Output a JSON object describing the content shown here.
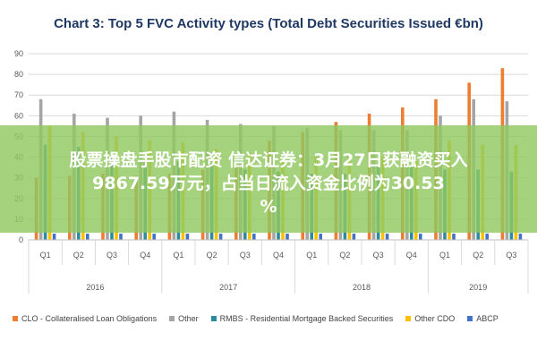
{
  "chart_data": {
    "type": "bar",
    "title": "Chart 3: Top 5 FVC Activity types (Total Debt Securities Issued €bn)",
    "xlabel": "",
    "ylabel": "",
    "ylim": [
      0,
      90
    ],
    "yticks": [
      "0",
      "10",
      "20",
      "30",
      "40",
      "50",
      "60",
      "70",
      "80",
      "90"
    ],
    "grid": true,
    "legend_position": "bottom",
    "categories": [
      "Q1",
      "Q2",
      "Q3",
      "Q4",
      "Q1",
      "Q2",
      "Q3",
      "Q4",
      "Q1",
      "Q2",
      "Q3",
      "Q4",
      "Q1",
      "Q2",
      "Q3"
    ],
    "year_groups": [
      {
        "label": "2016",
        "count": 4
      },
      {
        "label": "2017",
        "count": 4
      },
      {
        "label": "2018",
        "count": 4
      },
      {
        "label": "2019",
        "count": 3
      }
    ],
    "series": [
      {
        "name": "CLO - Collateralised Loan Obligations",
        "color": "#ed7d31",
        "values": [
          30,
          31,
          32,
          31,
          32,
          34,
          36,
          48,
          52,
          57,
          61,
          64,
          68,
          76,
          83
        ]
      },
      {
        "name": "Other",
        "color": "#a5a5a5",
        "values": [
          68,
          61,
          59,
          60,
          62,
          58,
          56,
          55,
          54,
          53,
          53,
          53,
          60,
          68,
          67
        ]
      },
      {
        "name": "RMBS - Residential Mortgage Backed Securities",
        "color": "#2e8b9e",
        "values": [
          46,
          45,
          40,
          39,
          38,
          37,
          34,
          33,
          32,
          32,
          36,
          36,
          34,
          34,
          33
        ]
      },
      {
        "name": "Other CDO",
        "color": "#ffc000",
        "values": [
          55,
          52,
          50,
          48,
          47,
          44,
          42,
          40,
          40,
          41,
          40,
          38,
          48,
          46,
          46
        ]
      },
      {
        "name": "ABCP",
        "color": "#4472c4",
        "values": [
          3,
          3,
          3,
          3,
          3,
          3,
          3,
          3,
          3,
          3,
          3,
          3,
          3,
          3,
          3
        ]
      }
    ]
  },
  "overlay": {
    "line1": "股票操盘手股市配资 信达证券：3月27日获融资买入",
    "line2": "9867.59万元，占当日流入资金比例为30.53",
    "line3": "%"
  }
}
